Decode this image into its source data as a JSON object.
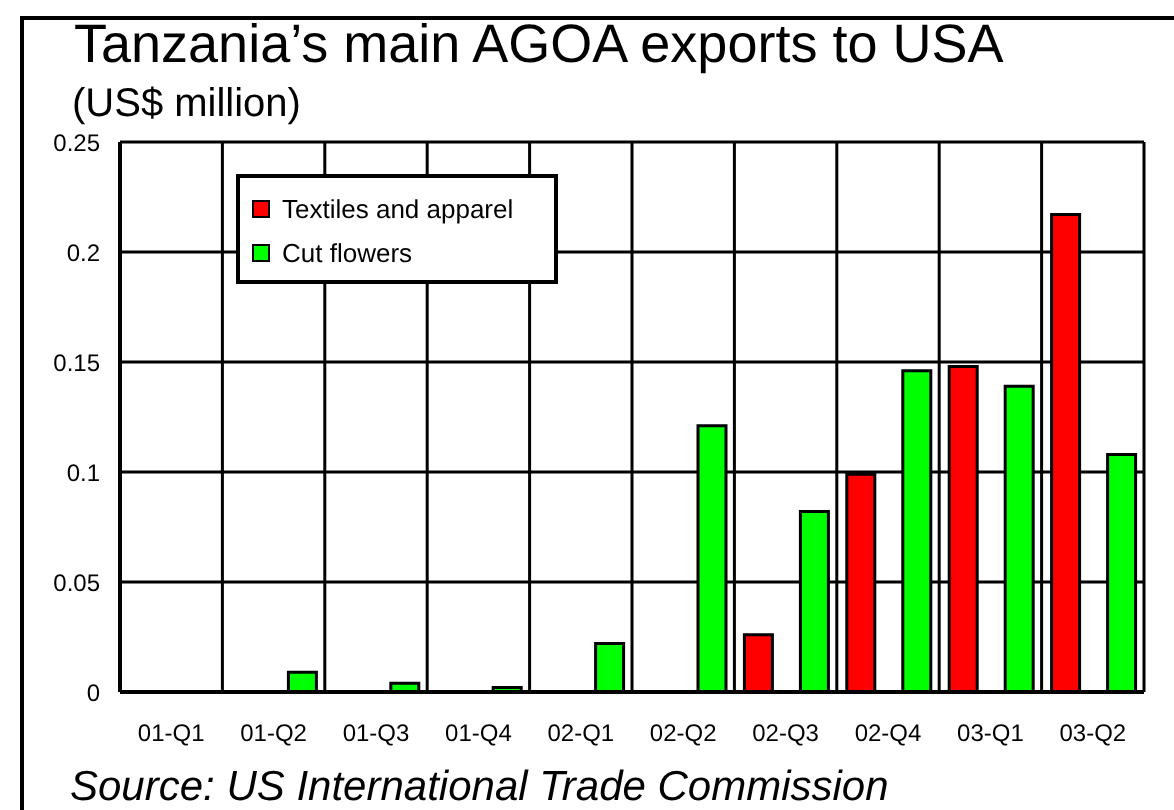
{
  "chart_data": {
    "type": "bar",
    "title": "Tanzania’s main AGOA exports to USA",
    "ylabel": "(US$ million)",
    "categories": [
      "01-Q1",
      "01-Q2",
      "01-Q3",
      "01-Q4",
      "02-Q1",
      "02-Q2",
      "02-Q3",
      "02-Q4",
      "03-Q1",
      "03-Q2"
    ],
    "series": [
      {
        "name": "Textiles and apparel",
        "color": "#ff0000",
        "values": [
          null,
          null,
          null,
          null,
          null,
          null,
          0.026,
          0.099,
          0.148,
          0.217
        ]
      },
      {
        "name": "Cut flowers",
        "color": "#00ff00",
        "values": [
          null,
          0.009,
          0.004,
          0.002,
          0.022,
          0.121,
          0.082,
          0.146,
          0.139,
          0.108
        ]
      }
    ],
    "ylim": [
      0,
      0.25
    ],
    "yticks": [
      0,
      0.05,
      0.1,
      0.15,
      0.2,
      0.25
    ],
    "grid": true,
    "legend": "top left",
    "annotations": [
      "Source: US International Trade Commission"
    ]
  }
}
